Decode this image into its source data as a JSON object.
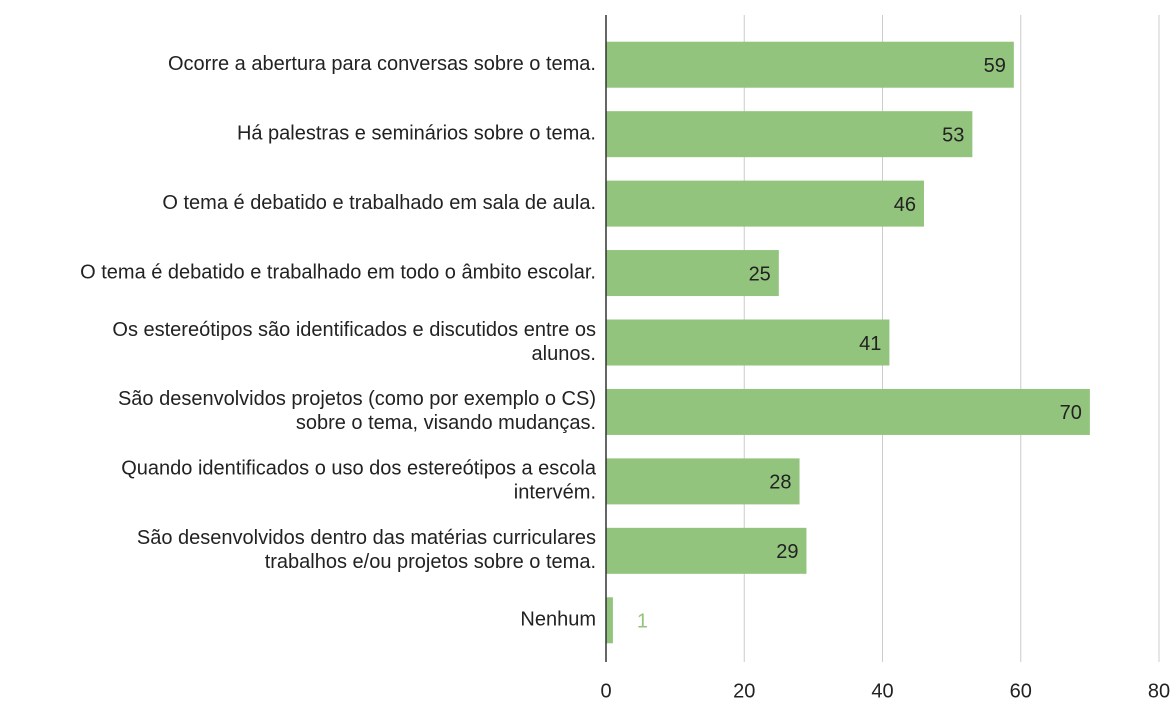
{
  "chart_data": {
    "type": "bar",
    "orientation": "horizontal",
    "categories": [
      [
        "Ocorre a abertura para conversas sobre o tema."
      ],
      [
        "Há palestras e seminários sobre o tema."
      ],
      [
        "O tema é debatido e trabalhado em sala de aula."
      ],
      [
        "O tema é debatido e trabalhado em todo o âmbito escolar."
      ],
      [
        "Os estereótipos são identificados e discutidos entre os",
        "alunos."
      ],
      [
        "São desenvolvidos projetos (como por exemplo o CS)",
        "sobre o tema, visando mudanças."
      ],
      [
        "Quando identificados o uso dos estereótipos a escola",
        "intervém."
      ],
      [
        "São desenvolvidos dentro das matérias curriculares",
        "trabalhos e/ou projetos sobre o tema."
      ],
      [
        "Nenhum"
      ]
    ],
    "values": [
      59,
      53,
      46,
      25,
      41,
      70,
      28,
      29,
      1
    ],
    "color": "#93c47d",
    "xlim": [
      0,
      80
    ],
    "xticks": [
      0,
      20,
      40,
      60,
      80
    ],
    "grid": true
  }
}
